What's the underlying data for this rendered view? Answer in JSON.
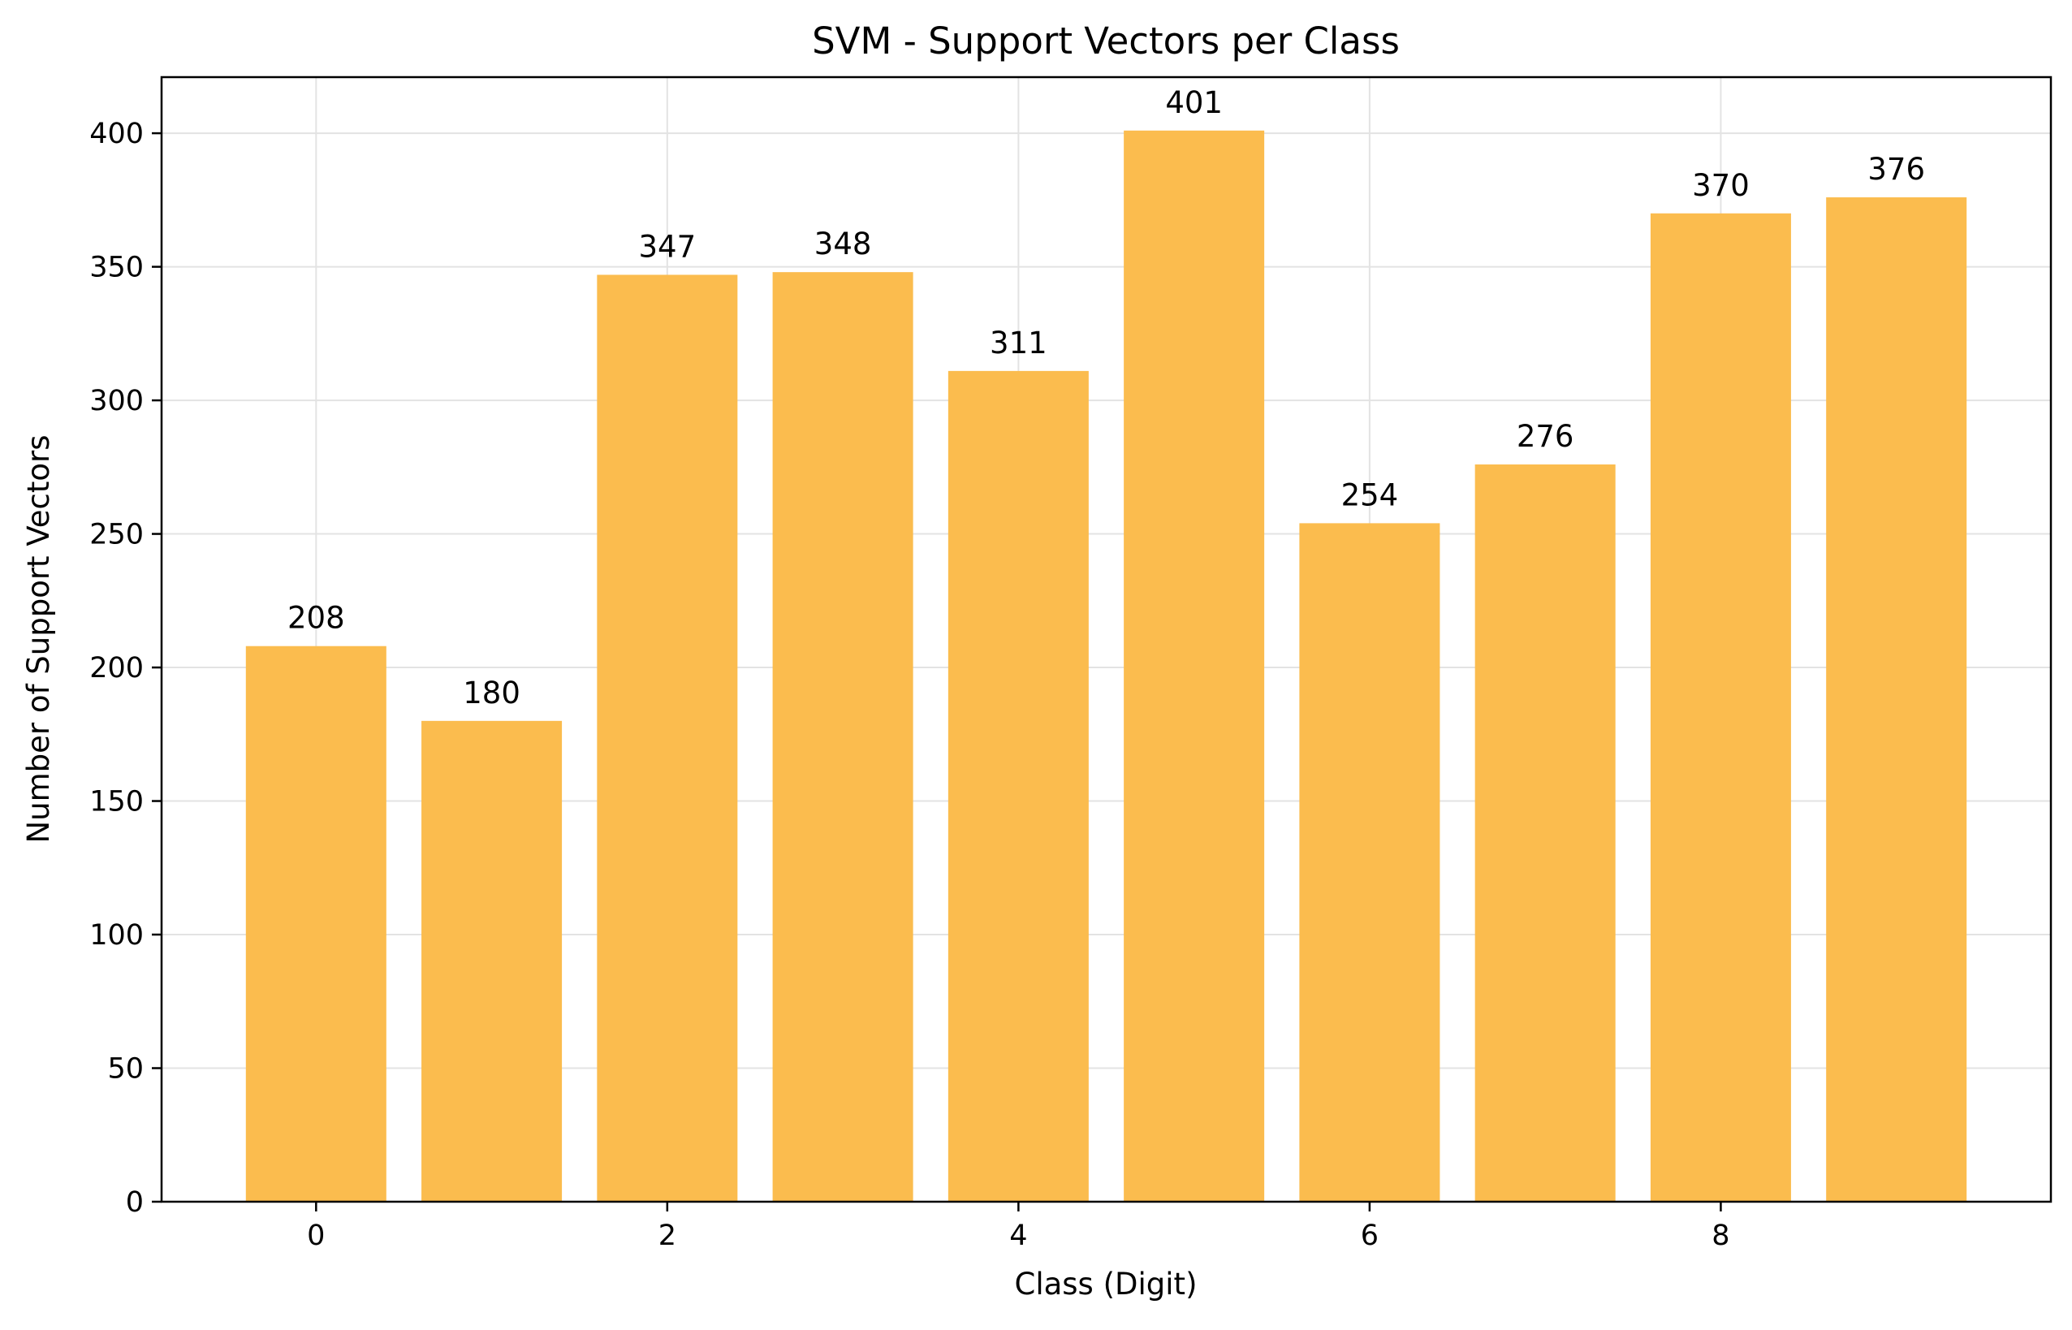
{
  "chart_data": {
    "type": "bar",
    "title": "SVM - Support Vectors per Class",
    "xlabel": "Class (Digit)",
    "ylabel": "Number of Support Vectors",
    "categories": [
      "0",
      "1",
      "2",
      "3",
      "4",
      "5",
      "6",
      "7",
      "8",
      "9"
    ],
    "x": [
      0,
      1,
      2,
      3,
      4,
      5,
      6,
      7,
      8,
      9
    ],
    "values": [
      208,
      180,
      347,
      348,
      311,
      401,
      254,
      276,
      370,
      376
    ],
    "data_labels": [
      "208",
      "180",
      "347",
      "348",
      "311",
      "401",
      "254",
      "276",
      "370",
      "376"
    ],
    "xlim": [
      -0.88,
      9.88
    ],
    "ylim": [
      0,
      421
    ],
    "xticks": [
      0,
      2,
      4,
      6,
      8
    ],
    "xtick_labels": [
      "0",
      "2",
      "4",
      "6",
      "8"
    ],
    "yticks": [
      0,
      50,
      100,
      150,
      200,
      250,
      300,
      350,
      400
    ],
    "ytick_labels": [
      "0",
      "50",
      "100",
      "150",
      "200",
      "250",
      "300",
      "350",
      "400"
    ],
    "grid": true,
    "legend": "none",
    "bar_color": "#fbbc4e",
    "grid_color": "#e3e3e3",
    "axis_color": "#000000"
  }
}
